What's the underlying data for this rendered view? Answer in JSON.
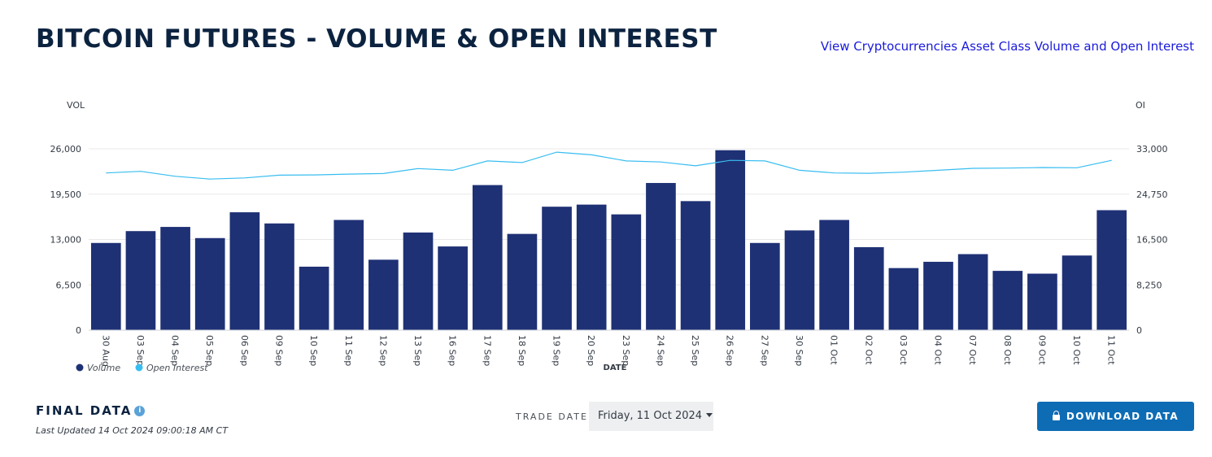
{
  "page": {
    "title": "BITCOIN FUTURES - VOLUME & OPEN INTEREST",
    "view_link": "View Cryptocurrencies Asset Class Volume and Open Interest"
  },
  "chart_data": {
    "type": "bar",
    "categories": [
      "30 Aug",
      "03 Sep",
      "04 Sep",
      "05 Sep",
      "06 Sep",
      "09 Sep",
      "10 Sep",
      "11 Sep",
      "12 Sep",
      "13 Sep",
      "16 Sep",
      "17 Sep",
      "18 Sep",
      "19 Sep",
      "20 Sep",
      "23 Sep",
      "24 Sep",
      "25 Sep",
      "26 Sep",
      "27 Sep",
      "30 Sep",
      "01 Oct",
      "02 Oct",
      "03 Oct",
      "04 Oct",
      "07 Oct",
      "08 Oct",
      "09 Oct",
      "10 Oct",
      "11 Oct"
    ],
    "series": [
      {
        "name": "Volume",
        "type": "bar",
        "axis": "left",
        "color": "#1f3175",
        "values": [
          12500,
          14200,
          14800,
          13200,
          16900,
          15300,
          9100,
          15800,
          10100,
          14000,
          12000,
          20800,
          13800,
          17700,
          18000,
          16600,
          21100,
          18500,
          25800,
          12500,
          14300,
          15800,
          11900,
          8900,
          9800,
          10900,
          8500,
          8100,
          10700,
          17200
        ]
      },
      {
        "name": "Open Interest",
        "type": "line",
        "axis": "right",
        "color": "#38bdf0",
        "values": [
          28600,
          28900,
          28000,
          27500,
          27700,
          28200,
          28250,
          28400,
          28500,
          29400,
          29100,
          30800,
          30500,
          32400,
          31900,
          30800,
          30600,
          29900,
          30900,
          30800,
          29100,
          28600,
          28550,
          28750,
          29100,
          29450,
          29500,
          29600,
          29550,
          30900
        ]
      }
    ],
    "xlabel": "DATE",
    "ylabel_left": "VOL",
    "ylabel_right": "OI",
    "ylim_left": [
      0,
      26000
    ],
    "ylim_right": [
      0,
      33000
    ],
    "yticks_left": [
      "0",
      "6,500",
      "13,000",
      "19,500",
      "26,000"
    ],
    "yticks_right": [
      "0",
      "8,250",
      "16,500",
      "24,750",
      "33,000"
    ],
    "grid": true,
    "legend_placement": "bottom-left"
  },
  "colors": {
    "bar": "#1f3175",
    "line": "#38bdf0",
    "title": "#0c2340",
    "button": "#0e6cb5"
  },
  "footer": {
    "final_label": "FINAL DATA",
    "info_icon": "i",
    "last_updated": "Last Updated 14 Oct 2024 09:00:18 AM CT",
    "trade_date_label": "TRADE DATE",
    "trade_date_value": "Friday, 11 Oct 2024",
    "download_label": "DOWNLOAD DATA"
  }
}
